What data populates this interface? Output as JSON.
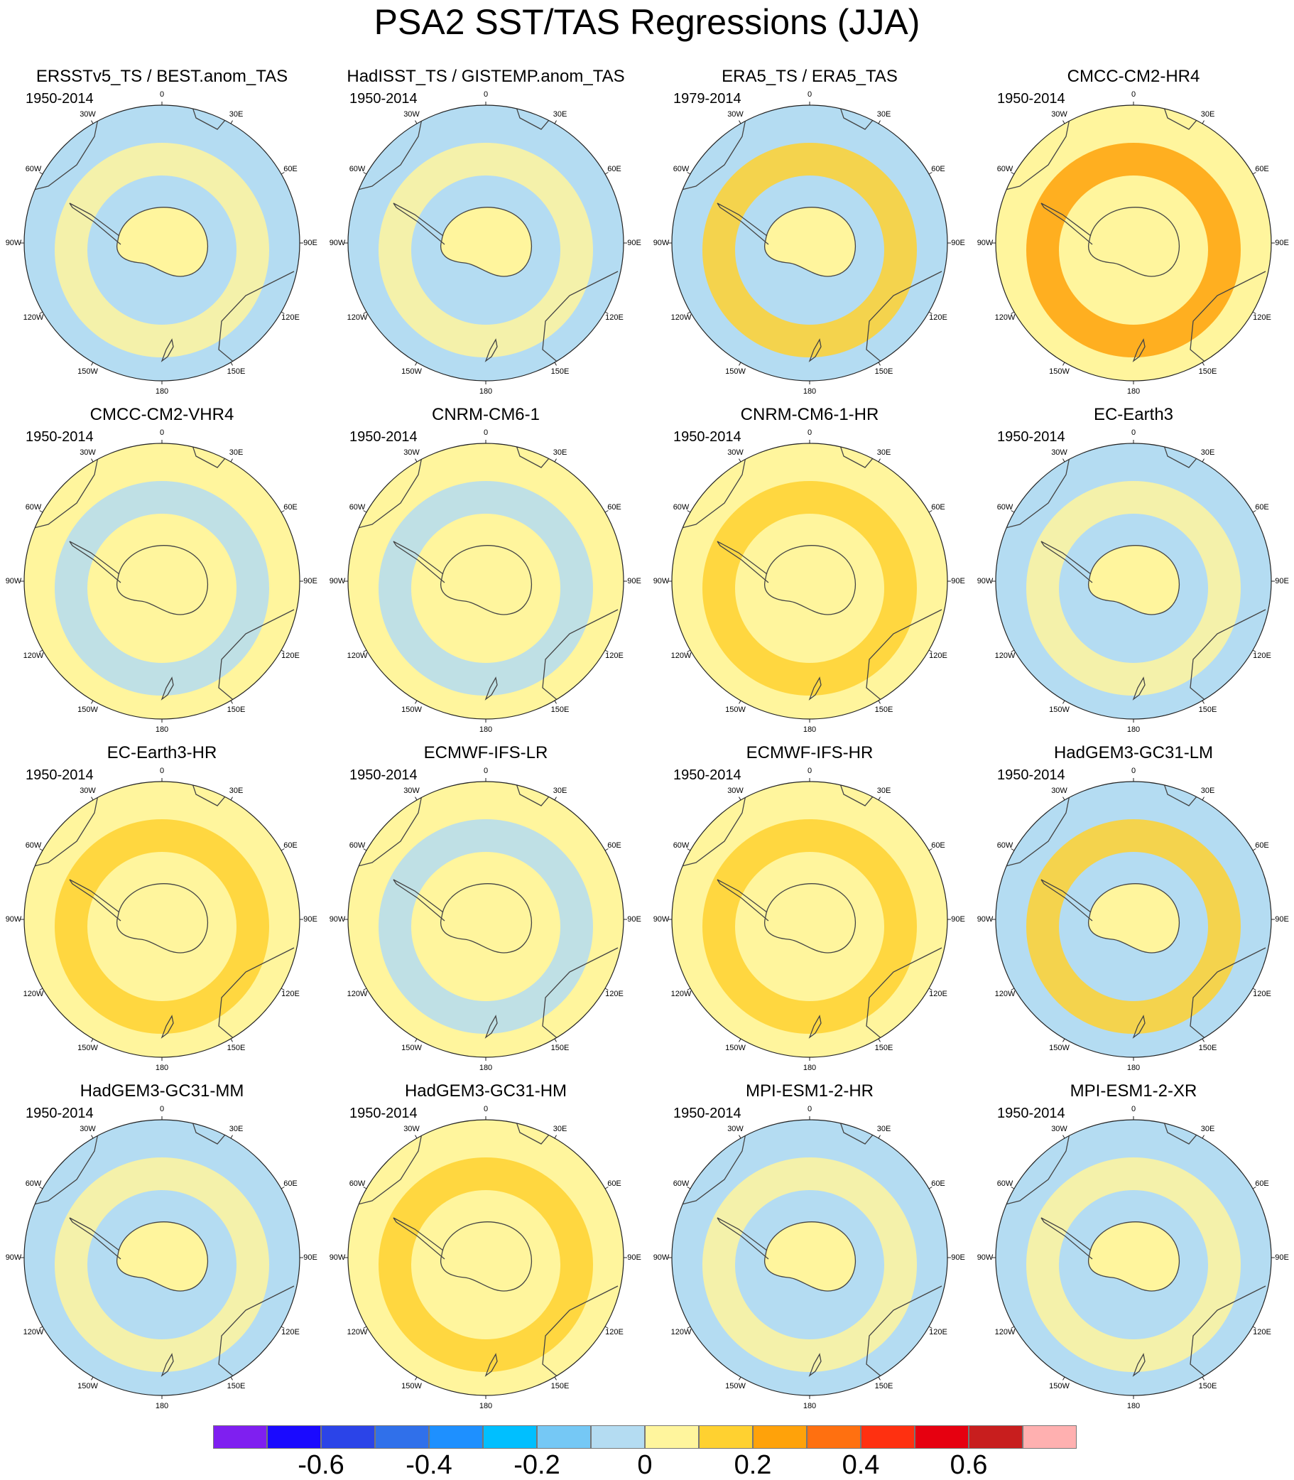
{
  "title": "PSA2 SST/TAS Regressions (JJA)",
  "lon_labels": [
    "0",
    "30E",
    "60E",
    "90E",
    "120E",
    "150E",
    "180",
    "150W",
    "120W",
    "90W",
    "60W",
    "30W"
  ],
  "panels": [
    {
      "title": "ERSSTv5_TS / BEST.anom_TAS",
      "period": "1950-2014",
      "base": "#b4dcf2",
      "swatch": "#fff59d"
    },
    {
      "title": "HadISST_TS / GISTEMP.anom_TAS",
      "period": "1950-2014",
      "base": "#b4dcf2",
      "swatch": "#fff59d"
    },
    {
      "title": "ERA5_TS / ERA5_TAS",
      "period": "1979-2014",
      "base": "#b4dcf2",
      "swatch": "#ffd130"
    },
    {
      "title": "CMCC-CM2-HR4",
      "period": "1950-2014",
      "base": "#fff59d",
      "swatch": "#ffa20a"
    },
    {
      "title": "CMCC-CM2-VHR4",
      "period": "1950-2014",
      "base": "#fff59d",
      "swatch": "#b4dcf2"
    },
    {
      "title": "CNRM-CM6-1",
      "period": "1950-2014",
      "base": "#fff59d",
      "swatch": "#b4dcf2"
    },
    {
      "title": "CNRM-CM6-1-HR",
      "period": "1950-2014",
      "base": "#fff59d",
      "swatch": "#ffd130"
    },
    {
      "title": "EC-Earth3",
      "period": "1950-2014",
      "base": "#b4dcf2",
      "swatch": "#fff59d"
    },
    {
      "title": "EC-Earth3-HR",
      "period": "1950-2014",
      "base": "#fff59d",
      "swatch": "#ffd130"
    },
    {
      "title": "ECMWF-IFS-LR",
      "period": "1950-2014",
      "base": "#fff59d",
      "swatch": "#b4dcf2"
    },
    {
      "title": "ECMWF-IFS-HR",
      "period": "1950-2014",
      "base": "#fff59d",
      "swatch": "#ffd130"
    },
    {
      "title": "HadGEM3-GC31-LM",
      "period": "1950-2014",
      "base": "#b4dcf2",
      "swatch": "#ffd130"
    },
    {
      "title": "HadGEM3-GC31-MM",
      "period": "1950-2014",
      "base": "#b4dcf2",
      "swatch": "#fff59d"
    },
    {
      "title": "HadGEM3-GC31-HM",
      "period": "1950-2014",
      "base": "#fff59d",
      "swatch": "#ffd130"
    },
    {
      "title": "MPI-ESM1-2-HR",
      "period": "1950-2014",
      "base": "#b4dcf2",
      "swatch": "#fff59d"
    },
    {
      "title": "MPI-ESM1-2-XR",
      "period": "1950-2014",
      "base": "#b4dcf2",
      "swatch": "#fff59d"
    }
  ],
  "colorbar": {
    "colors": [
      "#7f1ff0",
      "#1a0aff",
      "#2b44e8",
      "#3070ea",
      "#1e90ff",
      "#00bfff",
      "#75c8f5",
      "#b4dcf2",
      "#fff59d",
      "#ffd130",
      "#ffa20a",
      "#ff7010",
      "#ff3010",
      "#e60010",
      "#c81e1e",
      "#ffb0b0"
    ],
    "ticks": [
      {
        "label": "-0.6",
        "boundary": 2
      },
      {
        "label": "-0.4",
        "boundary": 4
      },
      {
        "label": "-0.2",
        "boundary": 6
      },
      {
        "label": "0",
        "boundary": 8
      },
      {
        "label": "0.2",
        "boundary": 10
      },
      {
        "label": "0.4",
        "boundary": 12
      },
      {
        "label": "0.6",
        "boundary": 14
      }
    ]
  }
}
